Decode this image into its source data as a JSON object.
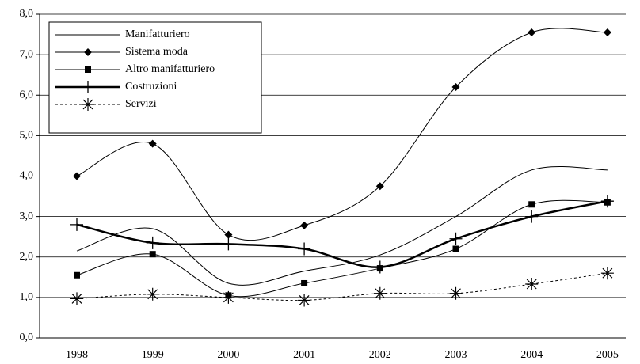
{
  "chart_data": {
    "type": "line",
    "categories": [
      "1998",
      "1999",
      "2000",
      "2001",
      "2002",
      "2003",
      "2004",
      "2005"
    ],
    "series": [
      {
        "name": "Manifatturiero",
        "color": "#000000",
        "marker": "none",
        "width": 1,
        "dash": false,
        "values": [
          2.15,
          2.7,
          1.35,
          1.65,
          2.05,
          3.0,
          4.15,
          4.15
        ]
      },
      {
        "name": "Sistema moda",
        "color": "#000000",
        "marker": "diamond",
        "width": 1,
        "dash": false,
        "values": [
          4.0,
          4.8,
          2.55,
          2.78,
          3.75,
          6.2,
          7.55,
          7.55
        ]
      },
      {
        "name": "Altro manifatturiero",
        "color": "#000000",
        "marker": "square",
        "width": 1,
        "dash": false,
        "values": [
          1.55,
          2.07,
          1.05,
          1.35,
          1.72,
          2.2,
          3.3,
          3.35
        ]
      },
      {
        "name": "Costruzioni",
        "color": "#000000",
        "marker": "plus",
        "width": 2.5,
        "dash": false,
        "values": [
          2.8,
          2.35,
          2.32,
          2.2,
          1.75,
          2.45,
          3.0,
          3.38
        ]
      },
      {
        "name": "Servizi",
        "color": "#000000",
        "marker": "star",
        "width": 1,
        "dash": true,
        "values": [
          0.97,
          1.08,
          1.0,
          0.93,
          1.1,
          1.1,
          1.33,
          1.6
        ]
      }
    ],
    "ylim": [
      0,
      8
    ],
    "yticks": [
      {
        "value": 0,
        "label": "0,0"
      },
      {
        "value": 1,
        "label": "1,0"
      },
      {
        "value": 2,
        "label": "2,0"
      },
      {
        "value": 3,
        "label": "3,0"
      },
      {
        "value": 4,
        "label": "4,0"
      },
      {
        "value": 5,
        "label": "5,0"
      },
      {
        "value": 6,
        "label": "6,0"
      },
      {
        "value": 7,
        "label": "7,0"
      },
      {
        "value": 8,
        "label": "8,0"
      }
    ],
    "grid": true,
    "smooth": true,
    "legend": "upper left"
  }
}
